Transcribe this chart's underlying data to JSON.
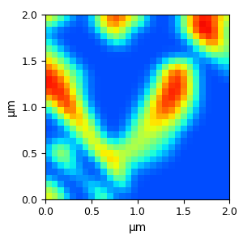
{
  "xlabel": "μm",
  "ylabel": "μm",
  "xlim": [
    0.0,
    2.0
  ],
  "ylim": [
    0.0,
    2.0
  ],
  "xticks": [
    0.0,
    0.5,
    1.0,
    1.5,
    2.0
  ],
  "yticks": [
    0.0,
    0.5,
    1.0,
    1.5,
    2.0
  ],
  "cmap": "jet",
  "grid_size": 30,
  "smooth_sigma": 0.9,
  "figsize": [
    3.0,
    3.01
  ],
  "dpi": 100,
  "raw_map": [
    [
      0.7,
      0.6,
      0.5,
      0.4,
      0.3,
      0.2,
      0.2,
      0.3,
      0.5,
      0.7,
      0.8,
      0.9,
      0.8,
      0.7,
      0.6,
      0.5,
      0.3,
      0.2,
      0.2,
      0.2,
      0.2,
      0.3,
      0.5,
      0.7,
      0.8,
      0.9,
      0.9,
      0.8,
      0.7,
      0.6
    ],
    [
      0.5,
      0.4,
      0.3,
      0.2,
      0.2,
      0.2,
      0.2,
      0.3,
      0.5,
      0.7,
      0.8,
      0.8,
      0.7,
      0.6,
      0.5,
      0.4,
      0.3,
      0.2,
      0.2,
      0.2,
      0.2,
      0.3,
      0.5,
      0.7,
      0.9,
      0.95,
      0.9,
      0.8,
      0.6,
      0.5
    ],
    [
      0.3,
      0.2,
      0.2,
      0.2,
      0.2,
      0.2,
      0.2,
      0.2,
      0.3,
      0.5,
      0.7,
      0.7,
      0.6,
      0.4,
      0.3,
      0.2,
      0.2,
      0.2,
      0.2,
      0.2,
      0.2,
      0.3,
      0.5,
      0.7,
      0.9,
      0.95,
      0.95,
      0.9,
      0.7,
      0.4
    ],
    [
      0.3,
      0.2,
      0.2,
      0.2,
      0.2,
      0.2,
      0.2,
      0.2,
      0.2,
      0.3,
      0.5,
      0.6,
      0.5,
      0.3,
      0.2,
      0.2,
      0.2,
      0.2,
      0.2,
      0.2,
      0.2,
      0.2,
      0.3,
      0.5,
      0.7,
      0.9,
      0.9,
      0.9,
      0.7,
      0.4
    ],
    [
      0.4,
      0.3,
      0.2,
      0.2,
      0.2,
      0.2,
      0.2,
      0.2,
      0.2,
      0.2,
      0.3,
      0.4,
      0.4,
      0.3,
      0.2,
      0.2,
      0.2,
      0.2,
      0.2,
      0.2,
      0.2,
      0.2,
      0.2,
      0.3,
      0.5,
      0.7,
      0.8,
      0.8,
      0.7,
      0.5
    ],
    [
      0.5,
      0.4,
      0.3,
      0.2,
      0.2,
      0.2,
      0.2,
      0.2,
      0.2,
      0.2,
      0.2,
      0.2,
      0.2,
      0.2,
      0.2,
      0.2,
      0.2,
      0.2,
      0.2,
      0.2,
      0.2,
      0.2,
      0.2,
      0.2,
      0.3,
      0.5,
      0.6,
      0.7,
      0.6,
      0.5
    ],
    [
      0.6,
      0.5,
      0.4,
      0.3,
      0.2,
      0.2,
      0.2,
      0.2,
      0.2,
      0.2,
      0.2,
      0.2,
      0.2,
      0.2,
      0.2,
      0.2,
      0.2,
      0.2,
      0.2,
      0.2,
      0.2,
      0.2,
      0.2,
      0.2,
      0.2,
      0.3,
      0.4,
      0.5,
      0.5,
      0.4
    ],
    [
      0.7,
      0.6,
      0.5,
      0.4,
      0.3,
      0.2,
      0.2,
      0.2,
      0.2,
      0.2,
      0.2,
      0.2,
      0.2,
      0.2,
      0.2,
      0.2,
      0.2,
      0.2,
      0.2,
      0.3,
      0.4,
      0.5,
      0.5,
      0.4,
      0.3,
      0.2,
      0.2,
      0.3,
      0.4,
      0.4
    ],
    [
      0.8,
      0.7,
      0.6,
      0.5,
      0.4,
      0.3,
      0.2,
      0.2,
      0.2,
      0.2,
      0.2,
      0.2,
      0.2,
      0.2,
      0.2,
      0.2,
      0.2,
      0.2,
      0.3,
      0.5,
      0.7,
      0.8,
      0.7,
      0.5,
      0.3,
      0.2,
      0.2,
      0.2,
      0.3,
      0.3
    ],
    [
      0.9,
      0.85,
      0.7,
      0.6,
      0.5,
      0.4,
      0.3,
      0.2,
      0.2,
      0.2,
      0.2,
      0.2,
      0.2,
      0.2,
      0.2,
      0.2,
      0.2,
      0.3,
      0.5,
      0.7,
      0.85,
      0.9,
      0.8,
      0.6,
      0.4,
      0.2,
      0.2,
      0.2,
      0.2,
      0.3
    ],
    [
      0.9,
      0.9,
      0.8,
      0.7,
      0.5,
      0.4,
      0.3,
      0.2,
      0.2,
      0.2,
      0.2,
      0.2,
      0.2,
      0.2,
      0.2,
      0.2,
      0.2,
      0.3,
      0.5,
      0.7,
      0.85,
      0.9,
      0.8,
      0.6,
      0.4,
      0.2,
      0.2,
      0.2,
      0.2,
      0.2
    ],
    [
      0.9,
      0.9,
      0.85,
      0.8,
      0.6,
      0.4,
      0.3,
      0.2,
      0.2,
      0.2,
      0.2,
      0.2,
      0.2,
      0.2,
      0.2,
      0.2,
      0.3,
      0.4,
      0.6,
      0.8,
      0.9,
      0.9,
      0.85,
      0.65,
      0.4,
      0.2,
      0.2,
      0.2,
      0.2,
      0.2
    ],
    [
      0.85,
      0.9,
      0.9,
      0.8,
      0.65,
      0.45,
      0.3,
      0.2,
      0.2,
      0.2,
      0.2,
      0.2,
      0.2,
      0.2,
      0.2,
      0.2,
      0.3,
      0.5,
      0.7,
      0.85,
      0.9,
      0.9,
      0.8,
      0.65,
      0.4,
      0.2,
      0.2,
      0.2,
      0.2,
      0.2
    ],
    [
      0.7,
      0.85,
      0.9,
      0.9,
      0.75,
      0.5,
      0.3,
      0.2,
      0.2,
      0.2,
      0.2,
      0.2,
      0.2,
      0.2,
      0.2,
      0.3,
      0.4,
      0.6,
      0.75,
      0.9,
      0.9,
      0.85,
      0.75,
      0.6,
      0.4,
      0.2,
      0.2,
      0.2,
      0.2,
      0.2
    ],
    [
      0.5,
      0.7,
      0.85,
      0.9,
      0.85,
      0.6,
      0.4,
      0.2,
      0.2,
      0.2,
      0.2,
      0.2,
      0.2,
      0.2,
      0.2,
      0.3,
      0.5,
      0.7,
      0.8,
      0.9,
      0.85,
      0.75,
      0.65,
      0.5,
      0.35,
      0.2,
      0.2,
      0.2,
      0.2,
      0.2
    ],
    [
      0.3,
      0.5,
      0.7,
      0.85,
      0.85,
      0.7,
      0.5,
      0.3,
      0.2,
      0.2,
      0.2,
      0.2,
      0.2,
      0.2,
      0.3,
      0.4,
      0.55,
      0.7,
      0.8,
      0.85,
      0.8,
      0.7,
      0.55,
      0.4,
      0.3,
      0.2,
      0.2,
      0.2,
      0.2,
      0.2
    ],
    [
      0.2,
      0.3,
      0.5,
      0.7,
      0.8,
      0.75,
      0.6,
      0.4,
      0.2,
      0.2,
      0.2,
      0.2,
      0.2,
      0.2,
      0.3,
      0.5,
      0.6,
      0.7,
      0.75,
      0.75,
      0.7,
      0.6,
      0.45,
      0.35,
      0.25,
      0.2,
      0.2,
      0.2,
      0.2,
      0.2
    ],
    [
      0.2,
      0.2,
      0.3,
      0.5,
      0.65,
      0.75,
      0.7,
      0.5,
      0.3,
      0.2,
      0.2,
      0.2,
      0.2,
      0.3,
      0.4,
      0.55,
      0.65,
      0.7,
      0.7,
      0.65,
      0.6,
      0.5,
      0.4,
      0.3,
      0.2,
      0.2,
      0.2,
      0.2,
      0.2,
      0.2
    ],
    [
      0.2,
      0.2,
      0.2,
      0.3,
      0.5,
      0.65,
      0.75,
      0.6,
      0.4,
      0.2,
      0.2,
      0.2,
      0.2,
      0.3,
      0.45,
      0.6,
      0.65,
      0.65,
      0.6,
      0.55,
      0.5,
      0.4,
      0.3,
      0.2,
      0.2,
      0.2,
      0.2,
      0.2,
      0.2,
      0.2
    ],
    [
      0.2,
      0.2,
      0.2,
      0.2,
      0.35,
      0.5,
      0.7,
      0.7,
      0.5,
      0.3,
      0.2,
      0.2,
      0.3,
      0.4,
      0.5,
      0.6,
      0.6,
      0.6,
      0.55,
      0.5,
      0.4,
      0.3,
      0.2,
      0.2,
      0.2,
      0.2,
      0.2,
      0.2,
      0.2,
      0.2
    ],
    [
      0.2,
      0.3,
      0.35,
      0.3,
      0.2,
      0.3,
      0.55,
      0.7,
      0.65,
      0.5,
      0.3,
      0.3,
      0.4,
      0.5,
      0.6,
      0.6,
      0.55,
      0.5,
      0.45,
      0.4,
      0.35,
      0.25,
      0.2,
      0.2,
      0.2,
      0.2,
      0.2,
      0.2,
      0.2,
      0.2
    ],
    [
      0.3,
      0.5,
      0.55,
      0.5,
      0.3,
      0.2,
      0.35,
      0.6,
      0.75,
      0.7,
      0.5,
      0.5,
      0.55,
      0.6,
      0.6,
      0.55,
      0.5,
      0.45,
      0.4,
      0.35,
      0.3,
      0.2,
      0.2,
      0.2,
      0.2,
      0.2,
      0.2,
      0.2,
      0.2,
      0.2
    ],
    [
      0.3,
      0.55,
      0.6,
      0.55,
      0.35,
      0.2,
      0.2,
      0.4,
      0.65,
      0.8,
      0.7,
      0.6,
      0.6,
      0.6,
      0.55,
      0.5,
      0.45,
      0.4,
      0.35,
      0.3,
      0.25,
      0.2,
      0.2,
      0.2,
      0.2,
      0.2,
      0.2,
      0.2,
      0.2,
      0.2
    ],
    [
      0.2,
      0.4,
      0.55,
      0.55,
      0.35,
      0.2,
      0.2,
      0.2,
      0.4,
      0.65,
      0.8,
      0.7,
      0.55,
      0.5,
      0.45,
      0.4,
      0.35,
      0.3,
      0.3,
      0.25,
      0.2,
      0.2,
      0.2,
      0.2,
      0.2,
      0.2,
      0.2,
      0.2,
      0.2,
      0.2
    ],
    [
      0.2,
      0.2,
      0.35,
      0.45,
      0.4,
      0.25,
      0.2,
      0.2,
      0.2,
      0.4,
      0.7,
      0.75,
      0.55,
      0.4,
      0.35,
      0.3,
      0.3,
      0.25,
      0.2,
      0.2,
      0.2,
      0.2,
      0.2,
      0.2,
      0.2,
      0.2,
      0.2,
      0.2,
      0.2,
      0.2
    ],
    [
      0.2,
      0.2,
      0.2,
      0.3,
      0.4,
      0.35,
      0.2,
      0.2,
      0.2,
      0.2,
      0.5,
      0.7,
      0.55,
      0.35,
      0.25,
      0.2,
      0.2,
      0.2,
      0.2,
      0.2,
      0.2,
      0.2,
      0.2,
      0.2,
      0.2,
      0.2,
      0.2,
      0.2,
      0.2,
      0.2
    ],
    [
      0.3,
      0.2,
      0.2,
      0.2,
      0.2,
      0.3,
      0.3,
      0.2,
      0.2,
      0.2,
      0.3,
      0.55,
      0.55,
      0.3,
      0.2,
      0.2,
      0.2,
      0.2,
      0.2,
      0.2,
      0.2,
      0.2,
      0.2,
      0.2,
      0.2,
      0.2,
      0.2,
      0.2,
      0.2,
      0.2
    ],
    [
      0.5,
      0.4,
      0.2,
      0.2,
      0.2,
      0.2,
      0.35,
      0.4,
      0.3,
      0.2,
      0.2,
      0.35,
      0.45,
      0.3,
      0.2,
      0.2,
      0.2,
      0.2,
      0.2,
      0.2,
      0.2,
      0.2,
      0.2,
      0.2,
      0.2,
      0.2,
      0.2,
      0.2,
      0.2,
      0.2
    ],
    [
      0.6,
      0.55,
      0.4,
      0.2,
      0.2,
      0.2,
      0.2,
      0.4,
      0.5,
      0.4,
      0.2,
      0.2,
      0.3,
      0.3,
      0.2,
      0.2,
      0.2,
      0.2,
      0.2,
      0.2,
      0.2,
      0.2,
      0.2,
      0.2,
      0.2,
      0.2,
      0.2,
      0.2,
      0.2,
      0.2
    ],
    [
      0.65,
      0.6,
      0.5,
      0.35,
      0.2,
      0.2,
      0.2,
      0.2,
      0.4,
      0.5,
      0.4,
      0.2,
      0.2,
      0.2,
      0.2,
      0.2,
      0.2,
      0.2,
      0.2,
      0.2,
      0.2,
      0.2,
      0.2,
      0.2,
      0.2,
      0.2,
      0.2,
      0.2,
      0.2,
      0.2
    ]
  ]
}
